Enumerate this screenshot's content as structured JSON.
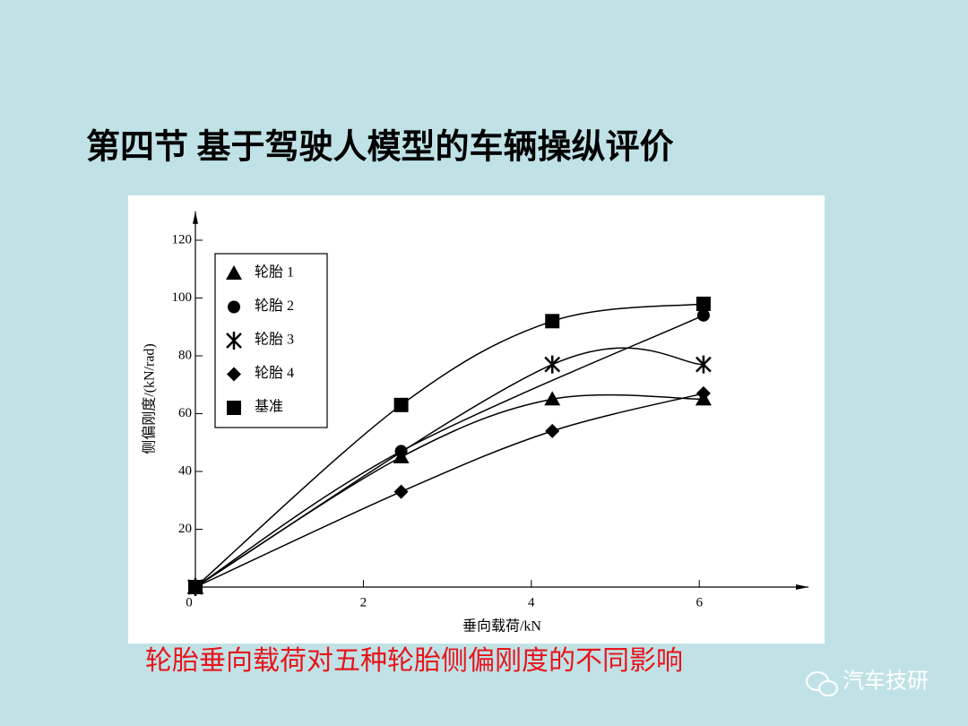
{
  "slide_title": "第四节  基于驾驶人模型的车辆操纵评价",
  "caption": "轮胎垂向载荷对五种轮胎侧偏刚度的不同影响",
  "watermark": "汽车技研",
  "chart_data": {
    "type": "scatter",
    "x_label": "垂向载荷/kN",
    "y_label": "侧偏刚度/(kN/rad)",
    "xlim": [
      0,
      7.3
    ],
    "ylim": [
      0,
      130
    ],
    "xticks": [
      0,
      2,
      4,
      6
    ],
    "yticks": [
      20,
      40,
      60,
      80,
      100,
      120
    ],
    "legend": "upper left",
    "series": [
      {
        "name": "轮胎 1",
        "color": "#000000",
        "marker": "triangle",
        "x": [
          0,
          2.45,
          4.25,
          6.05
        ],
        "values": [
          0,
          45,
          65,
          65
        ]
      },
      {
        "name": "轮胎 2",
        "color": "#000000",
        "marker": "circle",
        "x": [
          0,
          2.45,
          6.05
        ],
        "values": [
          0,
          47,
          94
        ]
      },
      {
        "name": "轮胎 3",
        "color": "#000000",
        "marker": "asterisk",
        "x": [
          0,
          4.25,
          6.05
        ],
        "values": [
          0,
          77,
          77
        ]
      },
      {
        "name": "轮胎 4",
        "color": "#000000",
        "marker": "diamond",
        "x": [
          0,
          2.45,
          4.25,
          6.05
        ],
        "values": [
          0,
          33,
          54,
          67
        ]
      },
      {
        "name": "基准",
        "color": "#000000",
        "marker": "square",
        "x": [
          0,
          2.45,
          4.25,
          6.05
        ],
        "values": [
          0,
          63,
          92,
          98
        ]
      }
    ]
  }
}
